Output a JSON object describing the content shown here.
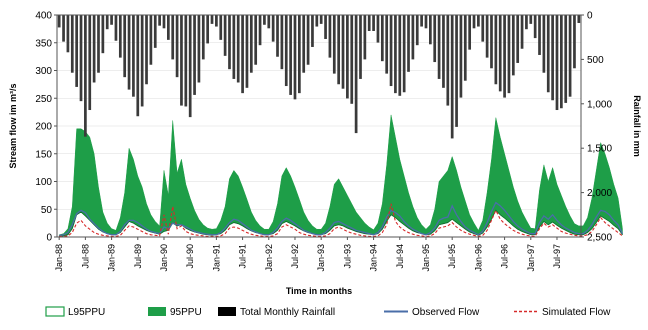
{
  "chart_data": {
    "type": "bar+area+line",
    "xlabel": "Time in months",
    "ylabel_left": "Stream flow im m³/s",
    "ylabel_right": "Rainfall in mm",
    "ylim_left": [
      0,
      400
    ],
    "ylim_right": [
      2500,
      0
    ],
    "yticks_left": [
      "0",
      "50",
      "100",
      "150",
      "200",
      "250",
      "300",
      "350",
      "400"
    ],
    "yticks_right": [
      "0",
      "500",
      "1,000",
      "1,500",
      "2,000",
      "2,500"
    ],
    "x_tick_labels": [
      "Jan-88",
      "Jul-88",
      "Jan-89",
      "Jul-89",
      "Jan-90",
      "Jul-90",
      "Jan-91",
      "Jul-91",
      "Jan-92",
      "Jul-92",
      "Jan-93",
      "Jul-93",
      "Jan-94",
      "Jul-94",
      "Jan-95",
      "Jul-95",
      "Jan-96",
      "Jul-96",
      "Jan-97",
      "Jul-97"
    ],
    "legend": {
      "position": "bottom",
      "entries": [
        {
          "label": "L95PPU",
          "symbol": "outline",
          "color": "#1e9e48"
        },
        {
          "label": "95PPU",
          "symbol": "fill",
          "color": "#1e9e48"
        },
        {
          "label": "Total Monthly Rainfall",
          "symbol": "fill",
          "color": "#000000"
        },
        {
          "label": "Observed Flow",
          "symbol": "line",
          "color": "#4a6ea8"
        },
        {
          "label": "Simulated Flow",
          "symbol": "dashed",
          "color": "#d62a2a"
        }
      ]
    },
    "colors": {
      "band": "#1e9e48",
      "rain": "#3a3a3a",
      "observed": "#4a6ea8",
      "simulated": "#d62a2a"
    },
    "months": 120,
    "series": [
      {
        "name": "Total Monthly Rainfall",
        "axis": "right",
        "values": [
          140,
          300,
          420,
          650,
          810,
          970,
          1370,
          1070,
          760,
          650,
          430,
          160,
          110,
          290,
          480,
          700,
          840,
          920,
          1140,
          1030,
          780,
          560,
          370,
          120,
          150,
          280,
          500,
          700,
          1020,
          1030,
          1150,
          900,
          760,
          500,
          320,
          100,
          130,
          280,
          460,
          610,
          720,
          760,
          880,
          820,
          650,
          560,
          340,
          110,
          150,
          300,
          470,
          610,
          800,
          900,
          950,
          880,
          650,
          560,
          360,
          130,
          100,
          270,
          480,
          660,
          780,
          830,
          940,
          1000,
          1330,
          720,
          500,
          180,
          180,
          310,
          520,
          660,
          800,
          880,
          910,
          870,
          640,
          500,
          340,
          130,
          150,
          330,
          530,
          720,
          820,
          1020,
          1390,
          1260,
          930,
          740,
          390,
          150,
          130,
          300,
          480,
          600,
          780,
          860,
          930,
          880,
          680,
          540,
          380,
          160,
          100,
          260,
          450,
          650,
          870,
          960,
          1070,
          1050,
          990,
          920,
          600,
          90
        ]
      },
      {
        "name": "95PPU",
        "axis": "left",
        "values": [
          4,
          6,
          15,
          55,
          195,
          195,
          190,
          180,
          150,
          90,
          45,
          25,
          15,
          12,
          35,
          80,
          160,
          140,
          110,
          90,
          60,
          40,
          28,
          20,
          120,
          75,
          210,
          115,
          140,
          95,
          70,
          48,
          32,
          22,
          16,
          14,
          15,
          30,
          55,
          105,
          120,
          110,
          90,
          68,
          45,
          30,
          20,
          14,
          14,
          28,
          60,
          110,
          125,
          110,
          90,
          68,
          45,
          30,
          20,
          14,
          14,
          25,
          55,
          95,
          105,
          90,
          75,
          60,
          45,
          35,
          25,
          18,
          13,
          25,
          60,
          130,
          220,
          180,
          140,
          110,
          80,
          55,
          35,
          22,
          14,
          22,
          50,
          100,
          110,
          120,
          145,
          120,
          90,
          65,
          40,
          25,
          12,
          30,
          80,
          140,
          215,
          180,
          150,
          120,
          90,
          65,
          45,
          30,
          16,
          15,
          85,
          130,
          100,
          125,
          95,
          75,
          55,
          38,
          24,
          20,
          20,
          35,
          70,
          120,
          170,
          150,
          125,
          95,
          70,
          15
        ]
      },
      {
        "name": "L95PPU",
        "axis": "left",
        "values": [
          1,
          2,
          4,
          15,
          40,
          45,
          38,
          30,
          22,
          14,
          9,
          6,
          4,
          4,
          8,
          18,
          28,
          25,
          20,
          16,
          12,
          9,
          7,
          5,
          10,
          12,
          25,
          20,
          22,
          16,
          12,
          9,
          7,
          5,
          4,
          3,
          4,
          6,
          12,
          22,
          26,
          24,
          20,
          15,
          11,
          8,
          6,
          4,
          4,
          6,
          12,
          24,
          28,
          24,
          20,
          15,
          11,
          8,
          6,
          4,
          4,
          6,
          12,
          20,
          22,
          20,
          16,
          13,
          10,
          8,
          6,
          5,
          4,
          6,
          14,
          28,
          40,
          35,
          28,
          22,
          16,
          11,
          8,
          6,
          4,
          5,
          11,
          22,
          24,
          26,
          32,
          26,
          20,
          14,
          9,
          6,
          3,
          7,
          18,
          32,
          48,
          40,
          34,
          27,
          20,
          14,
          10,
          7,
          4,
          4,
          18,
          28,
          22,
          27,
          21,
          16,
          12,
          8,
          5,
          4,
          4,
          8,
          15,
          26,
          38,
          33,
          28,
          21,
          15,
          4
        ]
      },
      {
        "name": "Observed Flow",
        "axis": "left",
        "values": [
          3,
          4,
          8,
          22,
          42,
          48,
          44,
          32,
          24,
          16,
          10,
          6,
          4,
          4,
          10,
          22,
          30,
          30,
          26,
          20,
          14,
          10,
          8,
          6,
          18,
          15,
          25,
          22,
          22,
          18,
          14,
          10,
          8,
          6,
          5,
          4,
          4,
          8,
          16,
          26,
          32,
          30,
          24,
          18,
          12,
          9,
          6,
          4,
          4,
          8,
          16,
          28,
          34,
          30,
          24,
          18,
          12,
          9,
          6,
          4,
          4,
          8,
          16,
          26,
          28,
          24,
          20,
          16,
          12,
          10,
          8,
          6,
          4,
          8,
          18,
          36,
          48,
          44,
          38,
          28,
          20,
          14,
          10,
          6,
          4,
          8,
          16,
          30,
          34,
          36,
          56,
          40,
          28,
          18,
          12,
          8,
          4,
          10,
          26,
          46,
          62,
          56,
          48,
          38,
          28,
          20,
          14,
          10,
          6,
          6,
          26,
          38,
          32,
          40,
          30,
          22,
          16,
          12,
          8,
          6,
          6,
          12,
          22,
          36,
          48,
          46,
          40,
          30,
          22,
          6
        ]
      },
      {
        "name": "Simulated Flow",
        "axis": "left",
        "values": [
          1,
          1,
          2,
          8,
          25,
          30,
          20,
          14,
          8,
          5,
          3,
          2,
          1,
          1,
          3,
          12,
          20,
          18,
          14,
          10,
          6,
          4,
          3,
          2,
          40,
          5,
          55,
          15,
          20,
          10,
          6,
          4,
          3,
          2,
          1,
          1,
          1,
          2,
          6,
          16,
          18,
          16,
          12,
          8,
          5,
          3,
          2,
          1,
          1,
          2,
          6,
          18,
          22,
          18,
          14,
          8,
          5,
          3,
          2,
          1,
          1,
          2,
          6,
          15,
          18,
          14,
          10,
          7,
          5,
          3,
          2,
          1,
          1,
          2,
          8,
          22,
          60,
          28,
          18,
          12,
          8,
          5,
          3,
          2,
          1,
          2,
          6,
          16,
          18,
          20,
          26,
          18,
          12,
          8,
          5,
          3,
          1,
          3,
          12,
          30,
          48,
          32,
          24,
          18,
          12,
          8,
          5,
          3,
          2,
          1,
          15,
          25,
          18,
          22,
          16,
          10,
          7,
          5,
          3,
          2,
          2,
          4,
          10,
          22,
          35,
          26,
          20,
          14,
          8,
          2
        ]
      }
    ]
  }
}
